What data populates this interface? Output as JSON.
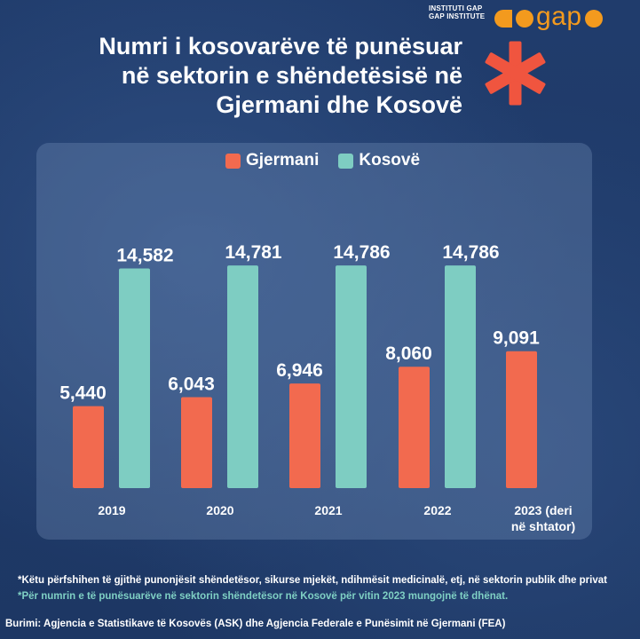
{
  "brand": {
    "institute_line1": "INSTITUTI GAP",
    "institute_line2": "GAP INSTITUTE",
    "logo_text": "gap",
    "logo_color": "#f39a1e"
  },
  "title_lines": [
    "Numri i kosovarëve të punësuar",
    "në sektorin e shëndetësisë në",
    "Gjermani dhe Kosovë"
  ],
  "asterisk_icon": "medical-asterisk-icon",
  "chart_data": {
    "type": "bar",
    "categories": [
      "2019",
      "2020",
      "2021",
      "2022",
      "2023 (deri në shtator)"
    ],
    "category_lines": [
      [
        "2019"
      ],
      [
        "2020"
      ],
      [
        "2021"
      ],
      [
        "2022"
      ],
      [
        "2023 (deri",
        "në shtator)"
      ]
    ],
    "series": [
      {
        "name": "Gjermani",
        "color": "#f26a4f",
        "values": [
          5440,
          6043,
          6946,
          8060,
          9091
        ],
        "labels": [
          "5,440",
          "6,043",
          "6,946",
          "8,060",
          "9,091"
        ]
      },
      {
        "name": "Kosovë",
        "color": "#7ecdc2",
        "values": [
          14582,
          14781,
          14786,
          14786,
          null
        ],
        "labels": [
          "14,582",
          "14,781",
          "14,786",
          "14,786",
          ""
        ]
      }
    ],
    "ylim": [
      0,
      16500
    ],
    "grid": false,
    "legend": "top-center"
  },
  "notes": {
    "note1": "*Këtu përfshihen të gjithë punonjësit shëndetësor, sikurse mjekët, ndihmësit medicinalë, etj, në sektorin publik dhe privat",
    "note2": "*Për numrin e të punësuarëve në sektorin shëndetësor në Kosovë për vitin 2023 mungojnë të dhënat.",
    "source": "Burimi: Agjencia e Statistikave të Kosovës (ASK) dhe Agjencia Federale e Punësimit në Gjermani (FEA)"
  }
}
